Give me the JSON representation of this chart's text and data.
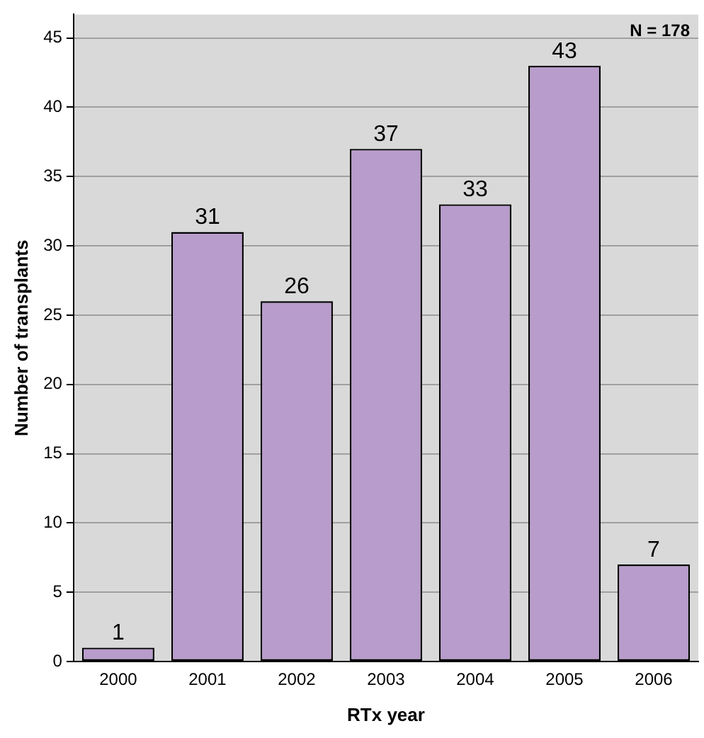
{
  "chart_data": {
    "type": "bar",
    "xlabel": "RTx year",
    "ylabel": "Number of transplants",
    "categories": [
      "2000",
      "2001",
      "2002",
      "2003",
      "2004",
      "2005",
      "2006"
    ],
    "values": [
      1,
      31,
      26,
      37,
      33,
      43,
      7
    ],
    "color": "#b89ccc",
    "ylim": [
      0,
      46.7
    ],
    "yticks": [
      0,
      5,
      10,
      15,
      20,
      25,
      30,
      35,
      40,
      45
    ],
    "grid": "y",
    "data_labels": true,
    "annotations": [
      "N = 178"
    ]
  }
}
